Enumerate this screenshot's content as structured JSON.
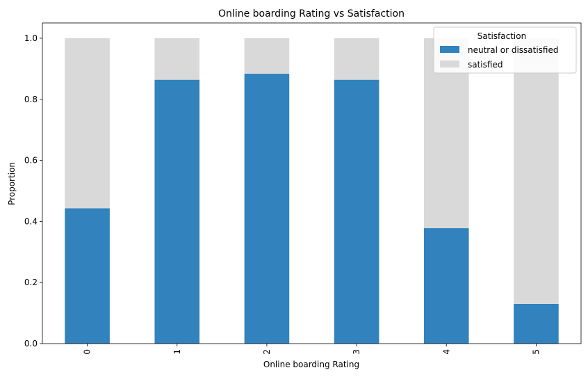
{
  "chart_data": {
    "type": "bar",
    "stacked": true,
    "title": "Online boarding Rating vs Satisfaction",
    "xlabel": "Online boarding Rating",
    "ylabel": "Proportion",
    "categories": [
      "0",
      "1",
      "2",
      "3",
      "4",
      "5"
    ],
    "series": [
      {
        "name": "neutral or dissatisfied",
        "color": "#3182bd",
        "values": [
          0.443,
          0.864,
          0.884,
          0.864,
          0.378,
          0.13
        ]
      },
      {
        "name": "satisfied",
        "color": "#d9d9d9",
        "values": [
          0.557,
          0.136,
          0.116,
          0.136,
          0.622,
          0.87
        ]
      }
    ],
    "ylim": [
      0,
      1.05
    ],
    "yticks": [
      "0.0",
      "0.2",
      "0.4",
      "0.6",
      "0.8",
      "1.0"
    ],
    "legend": {
      "title": "Satisfaction",
      "position": "top-right"
    },
    "grid": false
  }
}
